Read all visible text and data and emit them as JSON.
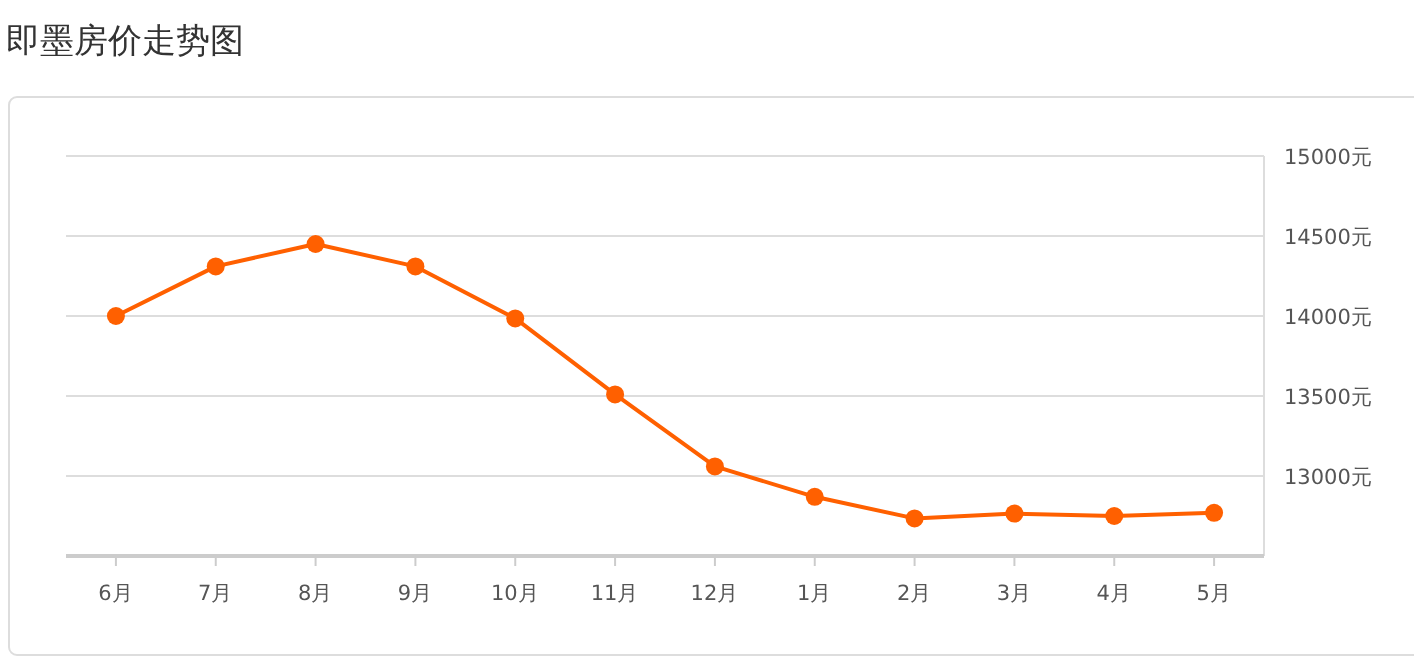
{
  "chart_data": {
    "type": "line",
    "title": "即墨房价走势图",
    "categories": [
      "6月",
      "7月",
      "8月",
      "9月",
      "10月",
      "11月",
      "12月",
      "1月",
      "2月",
      "3月",
      "4月",
      "5月"
    ],
    "series": [
      {
        "color": "#ff6000",
        "values": [
          14000,
          14310,
          14450,
          14310,
          13985,
          13510,
          13060,
          12870,
          12735,
          12765,
          12750,
          12770
        ]
      }
    ],
    "ylim": [
      12500,
      15000
    ],
    "yticks": [
      {
        "value": 13000,
        "label": "13000元"
      },
      {
        "value": 13500,
        "label": "13500元"
      },
      {
        "value": 14000,
        "label": "14000元"
      },
      {
        "value": 14500,
        "label": "14500元"
      },
      {
        "value": 15000,
        "label": "15000元"
      }
    ],
    "grid": "y",
    "marker": "circle",
    "line_style": "solid"
  }
}
